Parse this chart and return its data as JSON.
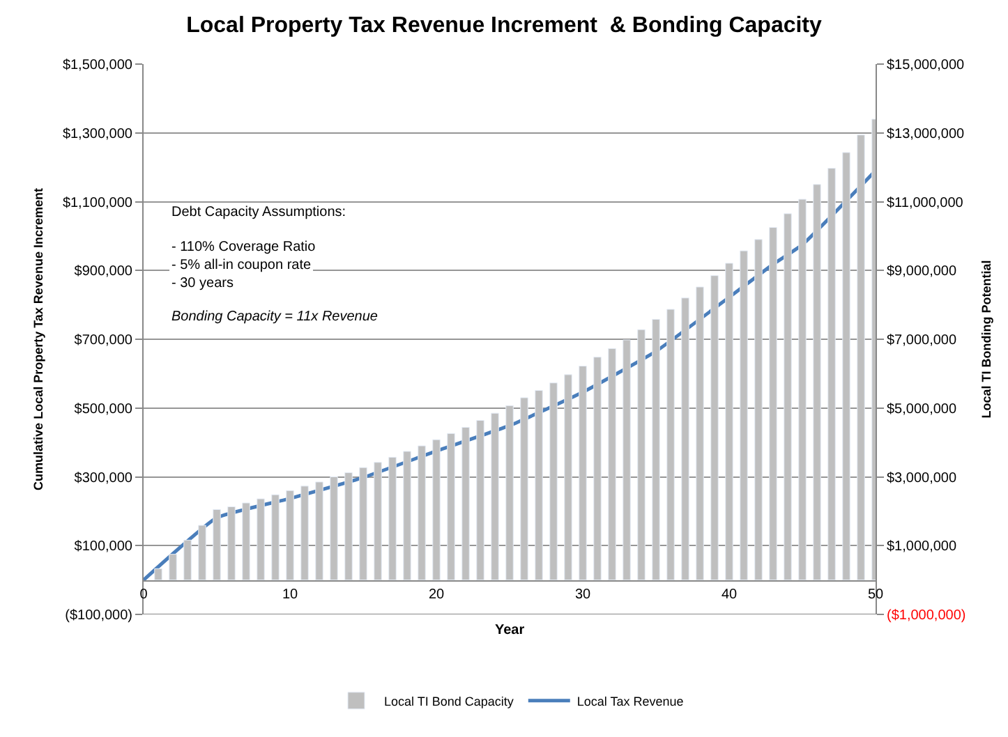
{
  "chart_data": {
    "type": "bar",
    "title": "Local Property Tax Revenue Increment  & Bonding Capacity",
    "xlabel": "Year",
    "ylabel": "Cumulative Local Property Tax Revenue Increment",
    "y2label": "Local TI Bonding Potential",
    "series": [
      {
        "name": "Local TI Bond Capacity",
        "axis": "y2",
        "color": "#bfbfbf",
        "x": [
          1,
          2,
          3,
          4,
          5,
          6,
          7,
          8,
          9,
          10,
          11,
          12,
          13,
          14,
          15,
          16,
          17,
          18,
          19,
          20,
          21,
          22,
          23,
          24,
          25,
          26,
          27,
          28,
          29,
          30,
          31,
          32,
          33,
          34,
          35,
          36,
          37,
          38,
          39,
          40,
          41,
          42,
          43,
          44,
          45,
          46,
          47,
          48,
          49,
          50
        ],
        "values": [
          330000,
          750000,
          1160000,
          1590000,
          2050000,
          2130000,
          2240000,
          2360000,
          2480000,
          2600000,
          2730000,
          2850000,
          3000000,
          3120000,
          3270000,
          3420000,
          3570000,
          3740000,
          3900000,
          4080000,
          4260000,
          4440000,
          4640000,
          4850000,
          5070000,
          5300000,
          5510000,
          5730000,
          5970000,
          6220000,
          6480000,
          6730000,
          6980000,
          7280000,
          7580000,
          7870000,
          8200000,
          8520000,
          8850000,
          9210000,
          9570000,
          9900000,
          10250000,
          10650000,
          11070000,
          11500000,
          11970000,
          12430000,
          12940000,
          13400000
        ]
      },
      {
        "name": "Local Tax Revenue",
        "type": "line",
        "color": "#4a7ebb",
        "x": [
          0,
          5,
          10,
          15,
          20,
          25,
          30,
          35,
          40,
          43,
          45,
          50
        ],
        "values": [
          0,
          181000,
          237000,
          298000,
          375000,
          449000,
          546000,
          665000,
          822000,
          918000,
          975000,
          1190000
        ]
      }
    ],
    "xlim": [
      0,
      50
    ],
    "xticks": [
      0,
      10,
      20,
      30,
      40,
      50
    ],
    "ylim": [
      -100000,
      1500000
    ],
    "yticks": [
      {
        "value": -100000,
        "label": "($100,000)"
      },
      {
        "value": 100000,
        "label": "$100,000"
      },
      {
        "value": 300000,
        "label": "$300,000"
      },
      {
        "value": 500000,
        "label": "$500,000"
      },
      {
        "value": 700000,
        "label": "$700,000"
      },
      {
        "value": 900000,
        "label": "$900,000"
      },
      {
        "value": 1100000,
        "label": "$1,100,000"
      },
      {
        "value": 1300000,
        "label": "$1,300,000"
      },
      {
        "value": 1500000,
        "label": "$1,500,000"
      }
    ],
    "y2lim": [
      -1000000,
      15000000
    ],
    "y2ticks": [
      {
        "value": -1000000,
        "label": "($1,000,000)"
      },
      {
        "value": 1000000,
        "label": "$1,000,000"
      },
      {
        "value": 3000000,
        "label": "$3,000,000"
      },
      {
        "value": 5000000,
        "label": "$5,000,000"
      },
      {
        "value": 7000000,
        "label": "$7,000,000"
      },
      {
        "value": 9000000,
        "label": "$9,000,000"
      },
      {
        "value": 11000000,
        "label": "$11,000,000"
      },
      {
        "value": 13000000,
        "label": "$13,000,000"
      },
      {
        "value": 15000000,
        "label": "$15,000,000"
      }
    ],
    "annotations": [
      "Debt Capacity Assumptions:",
      "- 110% Coverage Ratio",
      "- 5% all-in coupon rate",
      "- 30 years",
      "Bonding Capacity = 11x Revenue"
    ],
    "grid": "y",
    "legend": "bottom",
    "marker": "none",
    "line_style": "solid"
  }
}
